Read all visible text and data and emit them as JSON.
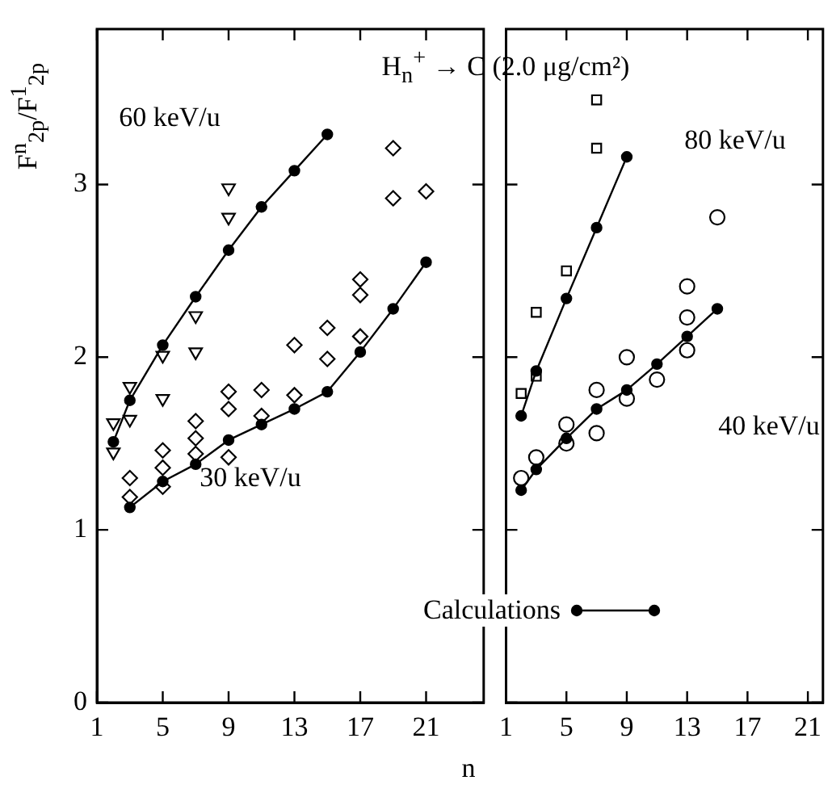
{
  "chart_data": [
    {
      "type": "scatter",
      "title": "H$_{n}$$^{+}$ → C (2.0 μg/cm²)",
      "ylabel": "F$^{n}$$_{2p}$/F$^{1}$$_{2p}$",
      "xlim": [
        1,
        24.5
      ],
      "ylim": [
        0,
        3.9
      ],
      "xticks": [
        1,
        5,
        9,
        13,
        17,
        21
      ],
      "yticks": [
        0,
        1,
        2,
        3
      ],
      "grid": false,
      "annotations": [
        "60 keV/u",
        "30 keV/u"
      ],
      "series": [
        {
          "type": "line",
          "color": "#000000",
          "marker": "circle",
          "line_style": "solid",
          "x": [
            2,
            3,
            5,
            7,
            9,
            11,
            13,
            15
          ],
          "values": [
            1.51,
            1.75,
            2.07,
            2.35,
            2.62,
            2.87,
            3.08,
            3.29
          ]
        },
        {
          "type": "scatter",
          "color": "#000000",
          "marker": "triangle",
          "x": [
            2,
            2,
            3,
            3,
            5,
            5,
            7,
            7,
            9,
            9
          ],
          "values": [
            1.62,
            1.45,
            1.83,
            1.64,
            2.01,
            1.76,
            2.24,
            2.03,
            2.98,
            2.81
          ]
        },
        {
          "type": "line",
          "color": "#000000",
          "marker": "circle",
          "line_style": "solid",
          "x": [
            3,
            5,
            7,
            9,
            11,
            13,
            15,
            17,
            19,
            21
          ],
          "values": [
            1.13,
            1.28,
            1.38,
            1.52,
            1.61,
            1.7,
            1.8,
            2.03,
            2.28,
            2.55
          ]
        },
        {
          "type": "scatter",
          "color": "#000000",
          "marker": "diamond",
          "x": [
            3,
            3,
            5,
            5,
            5,
            7,
            7,
            7,
            9,
            9,
            9,
            11,
            11,
            13,
            13,
            15,
            15,
            17,
            17,
            17,
            19,
            19,
            21
          ],
          "values": [
            1.3,
            1.19,
            1.46,
            1.36,
            1.25,
            1.63,
            1.53,
            1.44,
            1.8,
            1.7,
            1.42,
            1.81,
            1.66,
            2.07,
            1.78,
            2.17,
            1.99,
            2.45,
            2.36,
            2.12,
            3.21,
            2.92,
            2.96
          ]
        }
      ]
    },
    {
      "type": "scatter",
      "xlabel": "n",
      "xlim": [
        1,
        22
      ],
      "ylim": [
        0,
        3.9
      ],
      "xticks": [
        1,
        5,
        9,
        13,
        17,
        21
      ],
      "yticks": [
        0,
        1,
        2,
        3
      ],
      "grid": false,
      "tick_labels": "x",
      "annotations": [
        "80 keV/u",
        "40 keV/u"
      ],
      "legend": "bottom left",
      "series": [
        {
          "type": "line",
          "color": "#000000",
          "marker": "circle",
          "line_style": "solid",
          "x": [
            2,
            3,
            5,
            7,
            9
          ],
          "values": [
            1.66,
            1.92,
            2.34,
            2.75,
            3.16
          ]
        },
        {
          "type": "scatter",
          "color": "#000000",
          "marker": "square",
          "x": [
            2,
            3,
            3,
            5,
            7,
            7
          ],
          "values": [
            1.79,
            2.26,
            1.89,
            2.5,
            3.49,
            3.21
          ]
        },
        {
          "type": "line",
          "name": "Calculations",
          "color": "#000000",
          "marker": "circle",
          "line_style": "solid",
          "x": [
            2,
            3,
            5,
            7,
            9,
            11,
            13,
            15
          ],
          "values": [
            1.23,
            1.35,
            1.53,
            1.7,
            1.81,
            1.96,
            2.12,
            2.28
          ]
        },
        {
          "type": "scatter",
          "color": "#000000",
          "marker": "circle",
          "x": [
            2,
            3,
            5,
            5,
            7,
            7,
            9,
            9,
            11,
            13,
            13,
            13,
            15
          ],
          "values": [
            1.3,
            1.42,
            1.61,
            1.5,
            1.81,
            1.56,
            2.0,
            1.76,
            1.87,
            2.41,
            2.23,
            2.04,
            2.81
          ]
        }
      ]
    }
  ]
}
